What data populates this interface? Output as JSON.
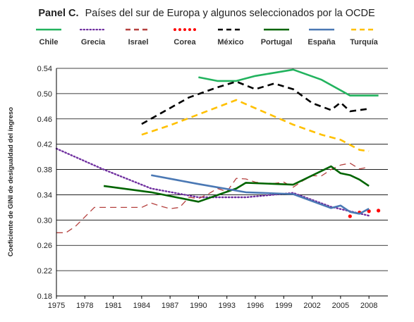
{
  "chart_data": {
    "type": "line",
    "title_bold": "Panel C.",
    "title": "Países del sur de Europa y algunos seleccionados por la OCDE",
    "xlabel": "",
    "ylabel": "Coeficiente de GINI de desigualdad del ingreso",
    "xlim": [
      1975,
      2010
    ],
    "ylim": [
      0.18,
      0.54
    ],
    "x_ticks": [
      "1975",
      "1978",
      "1981",
      "1984",
      "1987",
      "1990",
      "1993",
      "1996",
      "1999",
      "2002",
      "2005",
      "2008"
    ],
    "y_ticks": [
      "0.18",
      "0.22",
      "0.26",
      "0.30",
      "0.34",
      "0.38",
      "0.42",
      "0.46",
      "0.50",
      "0.54"
    ],
    "grid": "horizontal",
    "legend_position": "top",
    "series": [
      {
        "name": "Chile",
        "color": "#22b35e",
        "style": "solid",
        "x": [
          1990,
          1992,
          1994,
          1996,
          1998,
          2000,
          2003,
          2006,
          2009
        ],
        "y": [
          0.526,
          0.52,
          0.52,
          0.528,
          0.533,
          0.538,
          0.522,
          0.497,
          0.497
        ]
      },
      {
        "name": "Grecia",
        "color": "#7030a0",
        "style": "dotted",
        "x": [
          1975,
          1980,
          1985,
          1990,
          1995,
          2000,
          2004,
          2008
        ],
        "y": [
          0.413,
          0.38,
          0.35,
          0.336,
          0.336,
          0.343,
          0.321,
          0.307
        ]
      },
      {
        "name": "Israel",
        "color": "#b5413f",
        "style": "dashed",
        "x": [
          1975,
          1976,
          1977,
          1979,
          1981,
          1984,
          1985,
          1986,
          1987,
          1988,
          1989,
          1990,
          1991,
          1992,
          1993,
          1994,
          1995,
          1996,
          1997,
          1998,
          1999,
          2000,
          2001,
          2002,
          2003,
          2004,
          2005,
          2006,
          2007,
          2008
        ],
        "y": [
          0.28,
          0.28,
          0.29,
          0.32,
          0.32,
          0.32,
          0.327,
          0.322,
          0.318,
          0.32,
          0.336,
          0.334,
          0.341,
          0.35,
          0.345,
          0.366,
          0.365,
          0.36,
          0.358,
          0.358,
          0.36,
          0.352,
          0.362,
          0.37,
          0.37,
          0.38,
          0.387,
          0.39,
          0.381,
          0.384
        ]
      },
      {
        "name": "Corea",
        "color": "#ff0000",
        "style": "dots",
        "x": [
          2006,
          2007,
          2008,
          2009
        ],
        "y": [
          0.306,
          0.312,
          0.314,
          0.315
        ]
      },
      {
        "name": "México",
        "color": "#000000",
        "style": "dashed",
        "x": [
          1984,
          1989,
          1992,
          1994,
          1996,
          1998,
          2000,
          2002,
          2004,
          2005,
          2006,
          2008
        ],
        "y": [
          0.452,
          0.494,
          0.51,
          0.519,
          0.507,
          0.516,
          0.507,
          0.485,
          0.474,
          0.486,
          0.472,
          0.476
        ]
      },
      {
        "name": "Portugal",
        "color": "#006400",
        "style": "solid",
        "x": [
          1980,
          1985,
          1990,
          1994,
          1995,
          2000,
          2004,
          2005,
          2006,
          2007,
          2008
        ],
        "y": [
          0.354,
          0.344,
          0.329,
          0.35,
          0.359,
          0.356,
          0.385,
          0.374,
          0.371,
          0.364,
          0.354
        ]
      },
      {
        "name": "España",
        "color": "#4a78b4",
        "style": "solid",
        "x": [
          1985,
          1990,
          1995,
          2000,
          2004,
          2005,
          2006,
          2007,
          2008
        ],
        "y": [
          0.371,
          0.357,
          0.344,
          0.341,
          0.319,
          0.323,
          0.313,
          0.31,
          0.318
        ]
      },
      {
        "name": "Turquía",
        "color": "#ffc000",
        "style": "dashed",
        "x": [
          1984,
          1987,
          1994,
          2000,
          2003,
          2005,
          2007,
          2008
        ],
        "y": [
          0.435,
          0.45,
          0.49,
          0.451,
          0.435,
          0.427,
          0.411,
          0.409
        ]
      }
    ]
  }
}
